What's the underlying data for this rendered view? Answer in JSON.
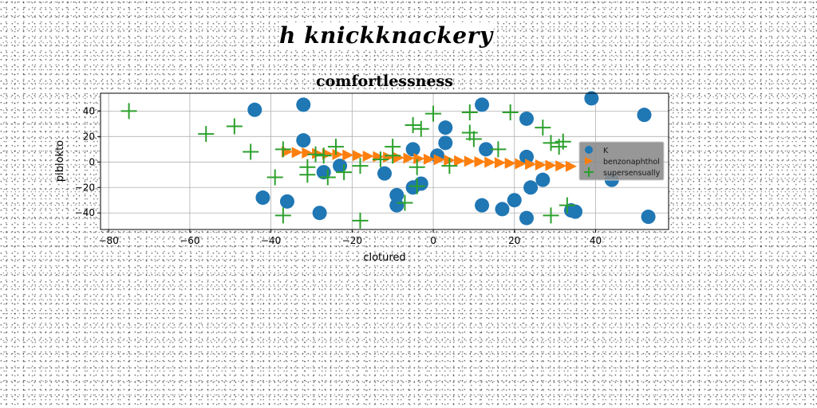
{
  "header_text": "h knickknackery",
  "chart_data": {
    "type": "scatter",
    "title": "comfortlessness",
    "xlabel": "clotured",
    "ylabel": "piblokto",
    "xlim": [
      -82,
      58
    ],
    "ylim": [
      -53,
      54
    ],
    "xticks": [
      -80,
      -60,
      -40,
      -20,
      0,
      20,
      40
    ],
    "yticks": [
      -40,
      -20,
      0,
      20,
      40
    ],
    "grid": true,
    "legend": {
      "position": "center-right"
    },
    "series": [
      {
        "name": "K",
        "marker": "circle",
        "color": "#1f77b4",
        "points": [
          [
            -44,
            41
          ],
          [
            -32,
            45
          ],
          [
            -32,
            17
          ],
          [
            -42,
            -28
          ],
          [
            -36,
            -31
          ],
          [
            -28,
            -40
          ],
          [
            -27,
            -8
          ],
          [
            -23,
            -3
          ],
          [
            -12,
            -9
          ],
          [
            -9,
            -26
          ],
          [
            -9,
            -34
          ],
          [
            -5,
            10
          ],
          [
            -5,
            -20
          ],
          [
            -3,
            -17
          ],
          [
            1,
            5
          ],
          [
            3,
            27
          ],
          [
            3,
            15
          ],
          [
            12,
            45
          ],
          [
            12,
            -34
          ],
          [
            13,
            10
          ],
          [
            17,
            -37
          ],
          [
            20,
            -30
          ],
          [
            23,
            34
          ],
          [
            23,
            4
          ],
          [
            23,
            -44
          ],
          [
            24,
            -20
          ],
          [
            27,
            -14
          ],
          [
            34,
            -38
          ],
          [
            35,
            -39
          ],
          [
            39,
            50
          ],
          [
            44,
            -14
          ],
          [
            52,
            37
          ],
          [
            53,
            -43
          ]
        ]
      },
      {
        "name": "benzonaphthol",
        "marker": "triangle-right",
        "color": "#ff7f0e",
        "points": [
          [
            -36,
            8.0
          ],
          [
            -33.5,
            7.5
          ],
          [
            -31,
            7.1
          ],
          [
            -28.5,
            6.7
          ],
          [
            -26,
            6.3
          ],
          [
            -23.5,
            5.9
          ],
          [
            -21,
            5.4
          ],
          [
            -18.5,
            5.0
          ],
          [
            -16,
            4.6
          ],
          [
            -13.5,
            4.2
          ],
          [
            -11,
            3.8
          ],
          [
            -8.5,
            3.4
          ],
          [
            -6,
            3.0
          ],
          [
            -3.5,
            2.6
          ],
          [
            -1,
            2.2
          ],
          [
            1.5,
            1.8
          ],
          [
            4,
            1.4
          ],
          [
            6.5,
            1.0
          ],
          [
            9,
            0.6
          ],
          [
            11.5,
            0.2
          ],
          [
            14,
            -0.2
          ],
          [
            16.5,
            -0.6
          ],
          [
            19,
            -1.0
          ],
          [
            21.5,
            -1.4
          ],
          [
            24,
            -1.8
          ],
          [
            26.5,
            -2.2
          ],
          [
            29,
            -2.6
          ],
          [
            31.5,
            -3.0
          ],
          [
            34,
            -3.4
          ]
        ]
      },
      {
        "name": "supersensually",
        "marker": "plus",
        "color": "#2ca02c",
        "points": [
          [
            -75,
            40
          ],
          [
            -56,
            22
          ],
          [
            -49,
            28
          ],
          [
            -45,
            8
          ],
          [
            -39,
            -12
          ],
          [
            -37,
            10
          ],
          [
            -37,
            -42
          ],
          [
            -31,
            -4
          ],
          [
            -31,
            -10
          ],
          [
            -29,
            6
          ],
          [
            -27,
            5
          ],
          [
            -26,
            -12
          ],
          [
            -24,
            12
          ],
          [
            -22,
            -8
          ],
          [
            -18,
            -3
          ],
          [
            -18,
            -46
          ],
          [
            -13,
            2
          ],
          [
            -10,
            12
          ],
          [
            -10,
            5
          ],
          [
            -7,
            -32
          ],
          [
            -5,
            29
          ],
          [
            -4,
            -4
          ],
          [
            -4,
            -19
          ],
          [
            -3,
            26
          ],
          [
            0,
            38
          ],
          [
            4,
            -3
          ],
          [
            9,
            39
          ],
          [
            9,
            23
          ],
          [
            10,
            18
          ],
          [
            16,
            10
          ],
          [
            19,
            39
          ],
          [
            27,
            27
          ],
          [
            29,
            15
          ],
          [
            29,
            -42
          ],
          [
            31,
            12
          ],
          [
            32,
            16
          ],
          [
            33,
            -34
          ]
        ]
      }
    ]
  }
}
